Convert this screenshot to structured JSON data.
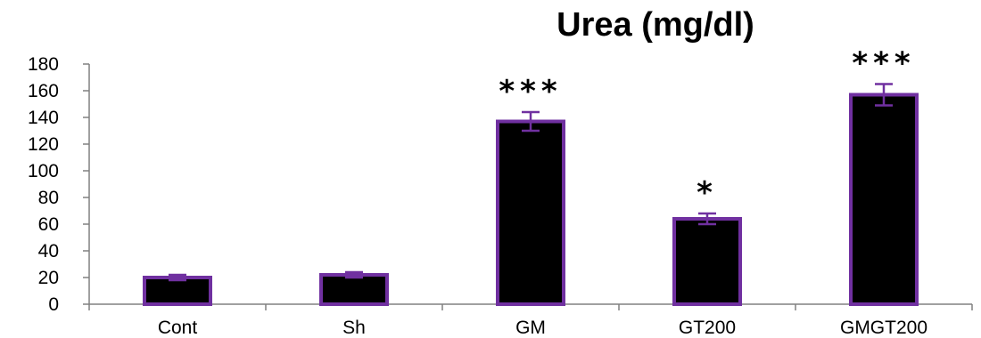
{
  "chart_data": {
    "type": "bar",
    "title": "Urea (mg/dl)",
    "xlabel": "",
    "ylabel": "",
    "ylim": [
      0,
      180
    ],
    "yticks": [
      0,
      20,
      40,
      60,
      80,
      100,
      120,
      140,
      160,
      180
    ],
    "ytick_labels": [
      "0",
      "20",
      "40",
      "60",
      "80",
      "100",
      "120",
      "140",
      "160",
      "180"
    ],
    "categories": [
      "Cont",
      "Sh",
      "GM",
      "GT200",
      "GMGT200"
    ],
    "values": [
      20,
      22,
      137,
      64,
      157
    ],
    "errors": [
      2,
      2,
      7,
      4,
      8
    ],
    "significance": [
      "",
      "",
      "***",
      "*",
      "***"
    ],
    "grid": false,
    "legend": "none",
    "colors": {
      "bar_fill": "#000000",
      "bar_edge": "#7030a0",
      "axis": "#808080"
    }
  }
}
